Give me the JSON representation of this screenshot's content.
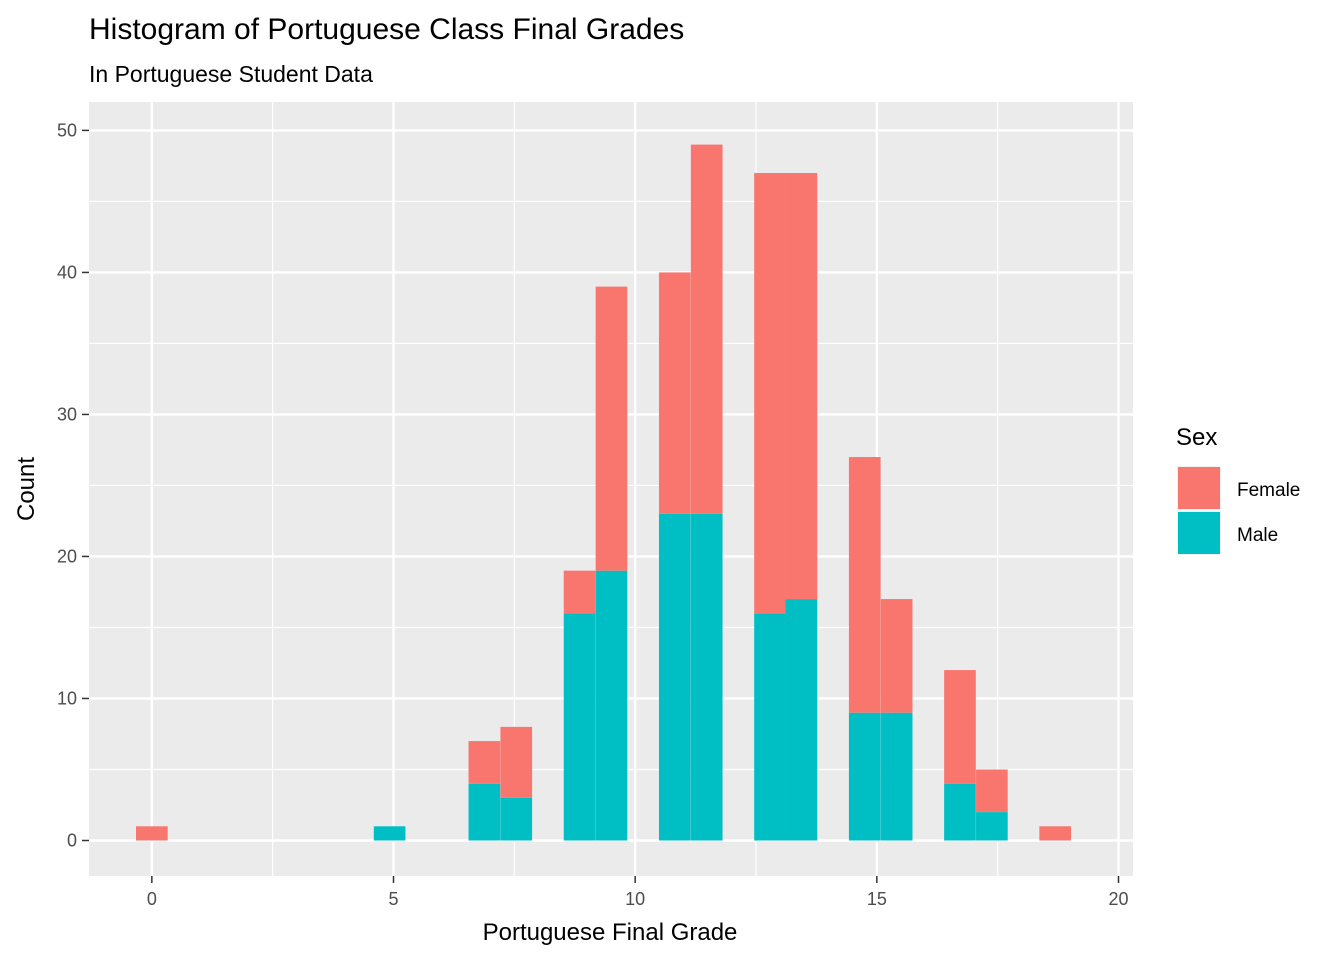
{
  "chart_data": {
    "type": "bar",
    "title": "Histogram of Portuguese Class Final Grades",
    "subtitle": "In Portuguese Student Data",
    "xlabel": "Portuguese Final Grade",
    "ylabel": "Count",
    "xlim": [
      -1.3,
      20.3
    ],
    "ylim": [
      -2.5,
      52
    ],
    "x_ticks": [
      0,
      5,
      10,
      15,
      20
    ],
    "y_ticks": [
      0,
      10,
      20,
      30,
      40,
      50
    ],
    "grid": true,
    "stacked": true,
    "bin_width": 0.6552,
    "legend": {
      "title": "Sex",
      "position": "right",
      "entries": [
        {
          "label": "Female",
          "color": "#F8766D"
        },
        {
          "label": "Male",
          "color": "#00BFC4"
        }
      ]
    },
    "bins": [
      {
        "x": 0.0,
        "female": 1,
        "male": 0
      },
      {
        "x": 4.92,
        "female": 0,
        "male": 1
      },
      {
        "x": 6.88,
        "female": 3,
        "male": 4
      },
      {
        "x": 7.54,
        "female": 5,
        "male": 3
      },
      {
        "x": 8.85,
        "female": 3,
        "male": 16
      },
      {
        "x": 9.51,
        "female": 20,
        "male": 19
      },
      {
        "x": 10.82,
        "female": 17,
        "male": 23
      },
      {
        "x": 11.48,
        "female": 26,
        "male": 23
      },
      {
        "x": 12.79,
        "female": 31,
        "male": 16
      },
      {
        "x": 13.44,
        "female": 30,
        "male": 17
      },
      {
        "x": 14.75,
        "female": 18,
        "male": 9
      },
      {
        "x": 15.41,
        "female": 8,
        "male": 9
      },
      {
        "x": 16.72,
        "female": 8,
        "male": 4
      },
      {
        "x": 17.38,
        "female": 3,
        "male": 2
      },
      {
        "x": 18.69,
        "female": 1,
        "male": 0
      }
    ]
  }
}
